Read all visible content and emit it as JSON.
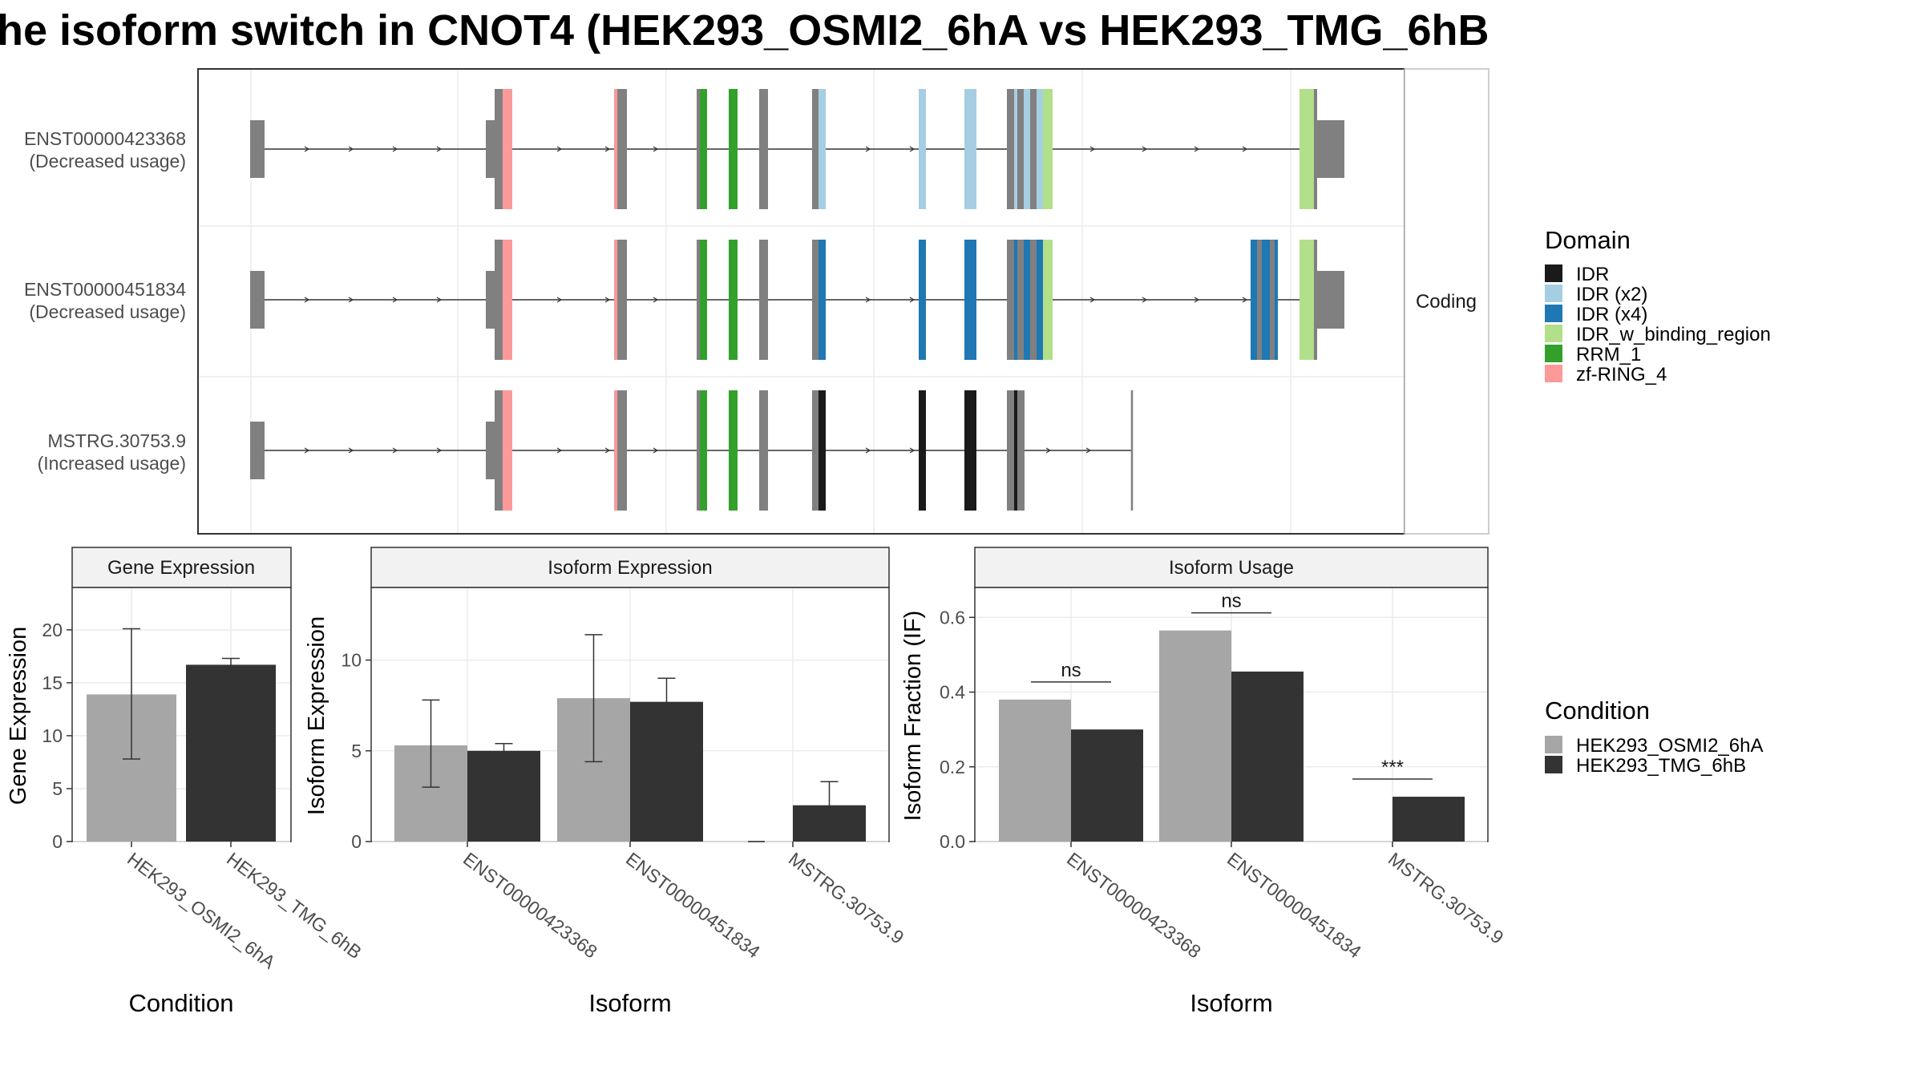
{
  "title": "he isoform switch in CNOT4 (HEK293_OSMI2_6hA vs HEK293_TMG_6hB",
  "colors": {
    "cond_a": "#A6A6A6",
    "cond_b": "#333333",
    "exon": "#808080",
    "IDR": "#1A1A1A",
    "IDR (x2)": "#A6CEE3",
    "IDR (x4)": "#1F78B4",
    "IDR_w_binding_region": "#B2DF8A",
    "RRM_1": "#33A02C",
    "zf-RING_4": "#FB9A99"
  },
  "structure": {
    "strip_label": "Coding",
    "legend_title": "Domain",
    "legend_items": [
      "IDR",
      "IDR (x2)",
      "IDR (x4)",
      "IDR_w_binding_region",
      "RRM_1",
      "zf-RING_4"
    ],
    "transcripts": [
      {
        "id": "ENST00000423368",
        "usage": "(Decreased usage)",
        "end_domain": "IDR (x2)",
        "length": "full"
      },
      {
        "id": "ENST00000451834",
        "usage": "(Decreased usage)",
        "end_domain": "IDR (x4)",
        "length": "full"
      },
      {
        "id": "MSTRG.30753.9",
        "usage": "(Increased usage)",
        "end_domain": "IDR",
        "length": "truncated"
      }
    ]
  },
  "chart_data": [
    {
      "type": "bar",
      "title": "Gene Expression",
      "xlabel": "Condition",
      "ylabel": "Gene Expression",
      "ylim": [
        0,
        24
      ],
      "yticks": [
        0,
        5,
        10,
        15,
        20
      ],
      "categories": [
        "HEK293_OSMI2_6hA",
        "HEK293_TMG_6hB"
      ],
      "values": [
        13.9,
        16.7
      ],
      "error_low": [
        7.8,
        16.1
      ],
      "error_high": [
        20.1,
        17.3
      ]
    },
    {
      "type": "bar",
      "title": "Isoform Expression",
      "xlabel": "Isoform",
      "ylabel": "Isoform Expression",
      "ylim": [
        0,
        14
      ],
      "yticks": [
        0,
        5,
        10
      ],
      "categories": [
        "ENST00000423368",
        "ENST00000451834",
        "MSTRG.30753.9"
      ],
      "series": [
        {
          "name": "HEK293_OSMI2_6hA",
          "values": [
            5.3,
            7.9,
            0.0
          ],
          "error_low": [
            3.0,
            4.4,
            0.0
          ],
          "error_high": [
            7.8,
            11.4,
            0.0
          ]
        },
        {
          "name": "HEK293_TMG_6hB",
          "values": [
            5.0,
            7.7,
            2.0
          ],
          "error_low": [
            4.6,
            6.4,
            0.8
          ],
          "error_high": [
            5.4,
            9.0,
            3.3
          ]
        }
      ]
    },
    {
      "type": "bar",
      "title": "Isoform Usage",
      "xlabel": "Isoform",
      "ylabel": "Isoform Fraction (IF)",
      "ylim": [
        0,
        0.68
      ],
      "yticks": [
        "0.0",
        "0.2",
        "0.4",
        "0.6"
      ],
      "categories": [
        "ENST00000423368",
        "ENST00000451834",
        "MSTRG.30753.9"
      ],
      "series": [
        {
          "name": "HEK293_OSMI2_6hA",
          "values": [
            0.38,
            0.565,
            0.0
          ]
        },
        {
          "name": "HEK293_TMG_6hB",
          "values": [
            0.3,
            0.455,
            0.12
          ]
        }
      ],
      "significance": [
        "ns",
        "ns",
        "***"
      ]
    }
  ],
  "condition_legend": {
    "title": "Condition",
    "items": [
      "HEK293_OSMI2_6hA",
      "HEK293_TMG_6hB"
    ]
  }
}
